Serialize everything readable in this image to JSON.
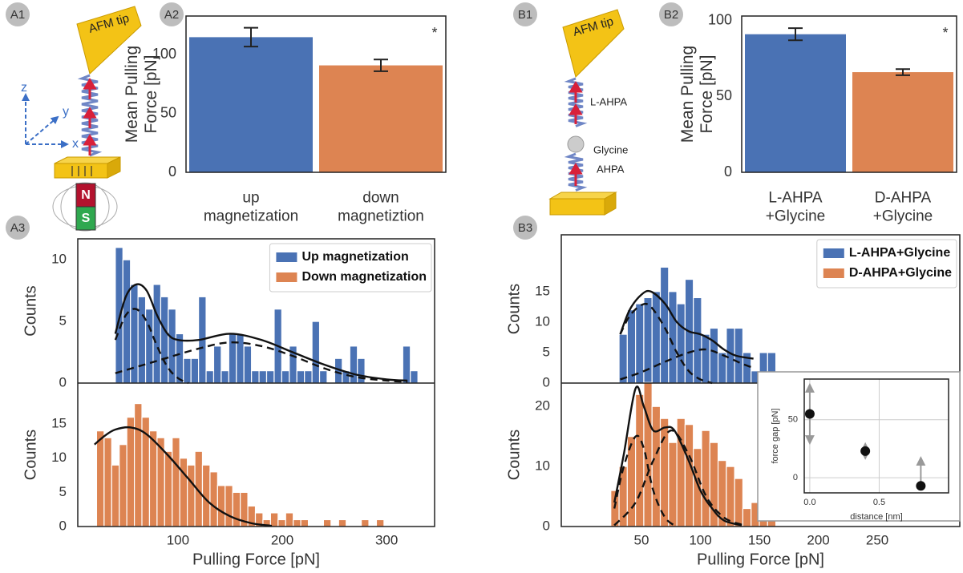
{
  "panel_labels": [
    "A1",
    "A2",
    "A3",
    "B1",
    "B2",
    "B3"
  ],
  "diagram_A1": {
    "tip": "AFM tip",
    "axes": [
      "x",
      "y",
      "z"
    ],
    "magnet": [
      "N",
      "S"
    ]
  },
  "diagram_B1": {
    "tip": "AFM tip",
    "upper_molecule": "L-AHPA",
    "lower_molecule": [
      "Glycine",
      "AHPA"
    ]
  },
  "chart_data": [
    {
      "type": "bar",
      "ylabel": "Mean Pulling Force [pN]",
      "categories": [
        "up magnetization",
        "down magnetiztion"
      ],
      "values": [
        115,
        91
      ],
      "errors": [
        8,
        5
      ],
      "colors": [
        "#4a72b4",
        "#dd8452"
      ],
      "ylim": [
        0,
        133
      ],
      "yticks": [
        0,
        50,
        100
      ],
      "annotation": "*"
    },
    {
      "type": "bar",
      "ylabel": "Mean Pulling Force [pN]",
      "categories": [
        "L-AHPA +Glycine",
        "D-AHPA +Glycine"
      ],
      "values": [
        91,
        66
      ],
      "errors": [
        4,
        2
      ],
      "colors": [
        "#4a72b4",
        "#dd8452"
      ],
      "ylim": [
        0,
        103
      ],
      "yticks": [
        0,
        50,
        100
      ],
      "annotation": "*"
    },
    {
      "type": "histogram",
      "xlabel": "Pulling Force [pN]",
      "ylabel": "Counts",
      "xlim": [
        4,
        346
      ],
      "xticks": [
        100,
        200,
        300
      ],
      "legend": "upper right",
      "series": [
        {
          "name": "Up magnetization",
          "color": "#4a72b4",
          "ylim": [
            0,
            11.7
          ],
          "yticks": [
            0,
            5,
            10
          ],
          "bins": [
            40,
            47.25,
            54.5,
            61.75,
            69,
            76.25,
            83.5,
            90.75,
            98,
            105.25,
            112.5,
            119.75,
            127,
            134.25,
            141.5,
            148.75,
            156,
            163.25,
            170.5,
            177.75,
            185,
            192.25,
            199.5,
            206.75,
            214,
            221.25,
            228.5,
            235.75,
            243,
            250.25,
            257.5,
            264.75,
            272,
            279.25,
            286.5,
            293.75,
            301,
            308.25,
            315.5,
            322.75,
            330
          ],
          "values": [
            11,
            10,
            8,
            7,
            6,
            8,
            7,
            6,
            4,
            2,
            2,
            7,
            1,
            3,
            1,
            4,
            4,
            3,
            1,
            1,
            1,
            6,
            1,
            3,
            1,
            1,
            5,
            1,
            0,
            2,
            1,
            3,
            2,
            0,
            0,
            0,
            0,
            0,
            3,
            1
          ],
          "fits": [
            {
              "style": "solid",
              "x": [
                40,
                50,
                60,
                70,
                80,
                90,
                100,
                120,
                150,
                180,
                210,
                240,
                270,
                300,
                320
              ],
              "y": [
                4,
                7,
                8,
                7.5,
                5.5,
                4,
                3.5,
                3.5,
                4,
                3.5,
                2.5,
                1.5,
                0.7,
                0.3,
                0.2
              ]
            },
            {
              "style": "dashed",
              "x": [
                40,
                50,
                60,
                70,
                80,
                90,
                100,
                110
              ],
              "y": [
                3.5,
                5.5,
                6,
                5,
                3,
                1.3,
                0.4,
                0
              ]
            },
            {
              "style": "dashed",
              "x": [
                40,
                80,
                120,
                150,
                180,
                210,
                240,
                270,
                300,
                320
              ],
              "y": [
                0.8,
                1.8,
                2.8,
                3.3,
                3,
                2.2,
                1.2,
                0.5,
                0.2,
                0.1
              ]
            }
          ]
        },
        {
          "name": "Down magnetization",
          "color": "#dd8452",
          "ylim": [
            0,
            21
          ],
          "yticks": [
            0,
            5,
            10,
            15
          ],
          "bins": [
            22,
            29.25,
            36.5,
            43.75,
            51,
            58.25,
            65.5,
            72.75,
            80,
            87.25,
            94.5,
            101.75,
            109,
            116.25,
            123.5,
            130.75,
            138,
            145.25,
            152.5,
            159.75,
            167,
            174.25,
            181.5,
            188.75,
            196,
            203.25,
            210.5,
            217.75,
            225,
            232.25,
            239.5,
            246.75,
            254,
            261.25,
            268.5,
            275.75,
            283,
            290.25,
            297.5
          ],
          "values": [
            14,
            13,
            9,
            12,
            16,
            18,
            16,
            14,
            13,
            11,
            13,
            10,
            9,
            11,
            9,
            8,
            6,
            6,
            5,
            5,
            3,
            2,
            1,
            2,
            1,
            2,
            1,
            1,
            0,
            0,
            1,
            0,
            1,
            0,
            0,
            1,
            0,
            1
          ],
          "fits": [
            {
              "style": "solid",
              "x": [
                20,
                30,
                40,
                55,
                70,
                90,
                110,
                130,
                150,
                170,
                190
              ],
              "y": [
                12,
                13.3,
                14.2,
                14.5,
                13.5,
                10.5,
                7,
                3.5,
                1.5,
                0.5,
                0.1
              ]
            }
          ]
        }
      ]
    },
    {
      "type": "histogram",
      "xlabel": "Pulling Force [pN]",
      "ylabel": "Counts",
      "xlim": [
        -18,
        320
      ],
      "xticks": [
        50,
        100,
        150,
        200,
        250
      ],
      "legend": "upper right",
      "series": [
        {
          "name": "L-AHPA+Glycine",
          "color": "#4a72b4",
          "ylim": [
            0,
            24.3
          ],
          "yticks": [
            0,
            5,
            10,
            15
          ],
          "bins": [
            31,
            38,
            45,
            52,
            59,
            66,
            73,
            80,
            87,
            94,
            101,
            108,
            115,
            122,
            129,
            136,
            143,
            150,
            157,
            164
          ],
          "values": [
            8,
            12,
            13,
            14,
            15,
            19,
            15,
            13,
            17,
            14,
            8,
            9,
            5,
            9,
            9,
            5,
            2,
            5,
            5
          ],
          "fits": [
            {
              "style": "solid",
              "x": [
                32,
                40,
                50,
                58,
                70,
                80,
                90,
                100,
                110,
                120,
                130,
                145
              ],
              "y": [
                8,
                12,
                14.5,
                15,
                13,
                10,
                8.5,
                8,
                7,
                5.5,
                4.5,
                4
              ]
            },
            {
              "style": "dashed",
              "x": [
                32,
                40,
                50,
                58,
                70,
                80,
                90,
                100,
                110
              ],
              "y": [
                8,
                11,
                12.8,
                12.5,
                9,
                5,
                2,
                0.6,
                0
              ]
            },
            {
              "style": "dashed",
              "x": [
                32,
                50,
                70,
                90,
                105,
                120,
                135,
                145
              ],
              "y": [
                0.6,
                1.8,
                3.5,
                5,
                5.5,
                4.5,
                3.2,
                2.5
              ]
            }
          ]
        },
        {
          "name": "D-AHPA+Glycine",
          "color": "#dd8452",
          "ylim": [
            0,
            23.9
          ],
          "yticks": [
            0,
            10,
            20
          ],
          "bins": [
            24,
            31,
            38,
            45,
            52,
            59,
            66,
            73,
            80,
            87,
            94,
            101,
            108,
            115,
            122,
            129,
            136,
            143,
            150,
            157,
            164
          ],
          "values": [
            6,
            10,
            15,
            22,
            24,
            20,
            18,
            14,
            18,
            17,
            13,
            16,
            14,
            11,
            10,
            8,
            3,
            4,
            2,
            1
          ],
          "fits": [
            {
              "style": "solid",
              "x": [
                27,
                35,
                45,
                52,
                60,
                70,
                78,
                90,
                100,
                110,
                120,
                135
              ],
              "y": [
                4,
                12,
                23,
                20,
                16,
                16.5,
                16,
                11,
                6,
                3,
                1,
                0.2
              ]
            },
            {
              "style": "dashed",
              "x": [
                27,
                35,
                45,
                52,
                60,
                70,
                80
              ],
              "y": [
                3,
                10,
                15,
                13,
                6,
                1.5,
                0
              ]
            },
            {
              "style": "dashed",
              "x": [
                27,
                45,
                60,
                75,
                90,
                105,
                120,
                135
              ],
              "y": [
                0.2,
                4,
                11,
                16,
                12,
                5,
                1.5,
                0.3
              ]
            }
          ]
        }
      ]
    },
    {
      "type": "scatter",
      "xlabel": "distance [nm]",
      "ylabel": "force gap [pN]",
      "x": [
        0,
        0.4,
        0.8
      ],
      "y": [
        55,
        23,
        -7
      ],
      "err_high": [
        25,
        6,
        24
      ],
      "err_low": [
        25,
        6,
        0
      ],
      "xlim": [
        -0.04,
        1.0
      ],
      "ylim": [
        -13,
        85
      ],
      "xticks": [
        {
          "value": 0,
          "label": "0.0"
        },
        0.5
      ],
      "yticks": [
        0,
        50
      ],
      "grid": true
    }
  ]
}
